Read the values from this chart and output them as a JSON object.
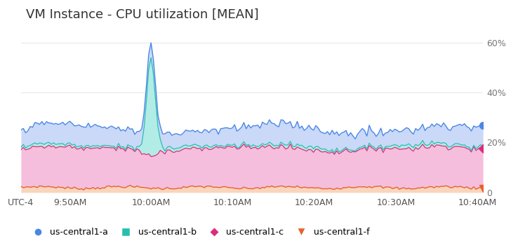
{
  "title": "VM Instance - CPU utilization [MEAN]",
  "title_fontsize": 13,
  "background_color": "#ffffff",
  "yticks": [
    0,
    20,
    40,
    60
  ],
  "ytick_labels": [
    "0",
    "20%",
    "40%",
    "60%"
  ],
  "ylim": [
    -1,
    65
  ],
  "xtick_labels": [
    "UTC-4",
    "9:50AM",
    "10:00AM",
    "10:10AM",
    "10:20AM",
    "10:30AM",
    "10:40AM"
  ],
  "xtick_minutes": [
    0,
    6,
    16,
    26,
    36,
    46,
    56
  ],
  "total_minutes": 57,
  "n_points": 200,
  "grid_color": "#e8e8e8",
  "series_f": {
    "color": "#e8622a",
    "fill_color": "#f9d5bc",
    "base_pct": 2.0
  },
  "series_c": {
    "color": "#db2d7a",
    "fill_color": "#f5bedd",
    "base_pct": 15.5
  },
  "series_b": {
    "color": "#26bfad",
    "fill_color": "#b2ece6",
    "spike_pct": 38.0,
    "base_pct": 1.0
  },
  "series_a": {
    "color": "#4a86e8",
    "fill_color": "#c9d9f7",
    "base_pct": 7.0
  },
  "legend": [
    {
      "label": "us-central1-a",
      "color": "#4a86e8",
      "marker": "o"
    },
    {
      "label": "us-central1-b",
      "color": "#26bfad",
      "marker": "s"
    },
    {
      "label": "us-central1-c",
      "color": "#db2d7a",
      "marker": "D"
    },
    {
      "label": "us-central1-f",
      "color": "#e8622a",
      "marker": "v"
    }
  ]
}
